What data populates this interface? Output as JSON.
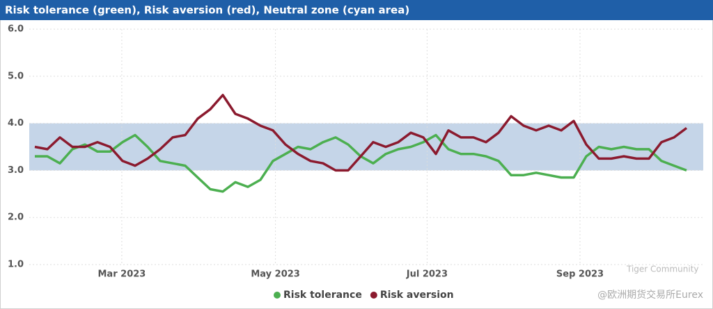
{
  "chart_data": {
    "type": "line",
    "title": "Risk tolerance (green), Risk aversion (red), Neutral zone (cyan area)",
    "series": [
      {
        "name": "Risk tolerance",
        "color": "#4caf50",
        "values": [
          3.3,
          3.3,
          3.15,
          3.45,
          3.55,
          3.4,
          3.4,
          3.6,
          3.75,
          3.5,
          3.2,
          3.15,
          3.1,
          2.85,
          2.6,
          2.55,
          2.75,
          2.65,
          2.8,
          3.2,
          3.35,
          3.5,
          3.45,
          3.6,
          3.7,
          3.55,
          3.3,
          3.15,
          3.35,
          3.45,
          3.5,
          3.6,
          3.75,
          3.45,
          3.35,
          3.35,
          3.3,
          3.2,
          2.9,
          2.9,
          2.95,
          2.9,
          2.85,
          2.85,
          3.3,
          3.5,
          3.45,
          3.5,
          3.45,
          3.45,
          3.2,
          3.1,
          3.0
        ]
      },
      {
        "name": "Risk aversion",
        "color": "#8b1a2e",
        "values": [
          3.5,
          3.45,
          3.7,
          3.5,
          3.5,
          3.6,
          3.5,
          3.2,
          3.1,
          3.25,
          3.45,
          3.7,
          3.75,
          4.1,
          4.3,
          4.6,
          4.2,
          4.1,
          3.95,
          3.85,
          3.55,
          3.35,
          3.2,
          3.15,
          3.0,
          3.0,
          3.3,
          3.6,
          3.5,
          3.6,
          3.8,
          3.7,
          3.35,
          3.85,
          3.7,
          3.7,
          3.6,
          3.8,
          4.15,
          3.95,
          3.85,
          3.95,
          3.85,
          4.05,
          3.55,
          3.25,
          3.25,
          3.3,
          3.25,
          3.25,
          3.6,
          3.7,
          3.9
        ]
      }
    ],
    "neutral_zone": [
      3,
      4
    ],
    "neutral_zone_color": "#c5d5e8",
    "xlim": [
      0,
      52
    ],
    "xticks": [
      {
        "value": 6.94,
        "label": "Mar 2023"
      },
      {
        "value": 19.2,
        "label": "May 2023"
      },
      {
        "value": 31.3,
        "label": "Jul 2023"
      },
      {
        "value": 43.5,
        "label": "Sep 2023"
      }
    ],
    "ylim": [
      1,
      6
    ],
    "yticks": [
      {
        "value": 1,
        "label": "1.0"
      },
      {
        "value": 2,
        "label": "2.0"
      },
      {
        "value": 3,
        "label": "3.0"
      },
      {
        "value": 4,
        "label": "4.0"
      },
      {
        "value": 5,
        "label": "5.0"
      },
      {
        "value": 6,
        "label": "6.0"
      }
    ],
    "grid": true,
    "legend": "bottom",
    "watermark": [
      "Tiger Community",
      "@欧洲期货交易所Eurex"
    ]
  }
}
